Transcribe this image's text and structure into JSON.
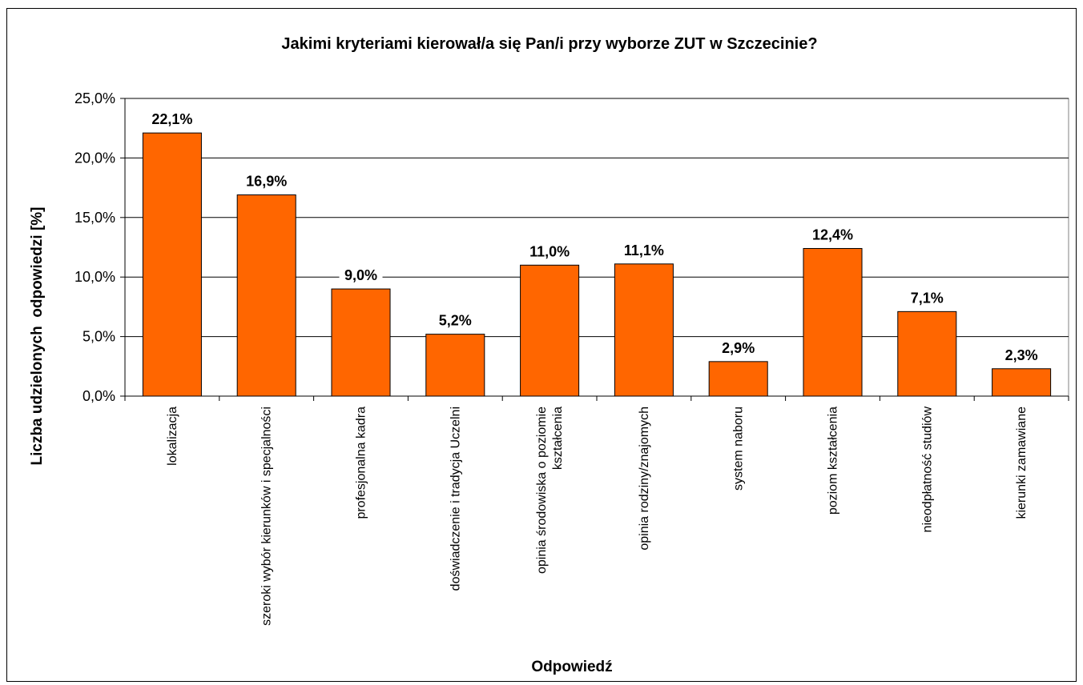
{
  "chart_data": {
    "type": "bar",
    "title": "Jakimi kryteriami kierował/a się Pan/i przy wyborze ZUT w Szczecinie?",
    "xlabel": "Odpowiedź",
    "ylabel": "Liczba udzielonych  odpowiedzi [%]",
    "categories": [
      [
        "lokalizacja"
      ],
      [
        "szeroki wybór kierunków i specjalności"
      ],
      [
        "profesjonalna kadra"
      ],
      [
        "doświadczenie i tradycja Uczelni"
      ],
      [
        "opinia środowiska o poziomie",
        "kształcenia"
      ],
      [
        "opinia rodziny/znajomych"
      ],
      [
        "system naboru"
      ],
      [
        "poziom kształcenia"
      ],
      [
        "nieodpłatność studiów"
      ],
      [
        "kierunki zamawiane"
      ]
    ],
    "values": [
      22.1,
      16.9,
      9.0,
      5.2,
      11.0,
      11.1,
      2.9,
      12.4,
      7.1,
      2.3
    ],
    "value_labels": [
      "22,1%",
      "16,9%",
      "9,0%",
      "5,2%",
      "11,0%",
      "11,1%",
      "2,9%",
      "12,4%",
      "7,1%",
      "2,3%"
    ],
    "ylim": [
      0,
      25
    ],
    "yticks": [
      0,
      5,
      10,
      15,
      20,
      25
    ],
    "ytick_labels": [
      "0,0%",
      "5,0%",
      "10,0%",
      "15,0%",
      "20,0%",
      "25,0%"
    ],
    "grid": true,
    "bar_color": "#ff6600"
  }
}
